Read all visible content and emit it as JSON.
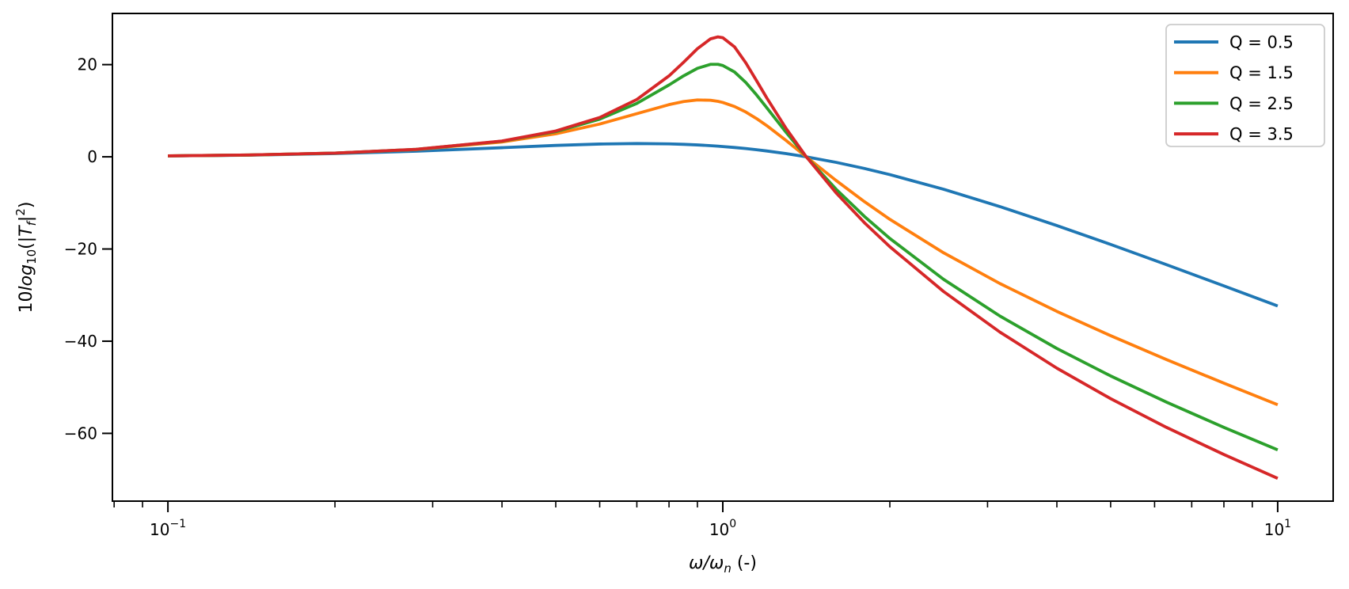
{
  "chart_data": {
    "type": "line",
    "title": "",
    "xlabel": "ω/ω_n (-)",
    "ylabel": "10log_10(|T_f|^2)",
    "xlabel_segments": [
      {
        "text": "ω/ω",
        "italic": true,
        "script": "normal"
      },
      {
        "text": "n",
        "italic": true,
        "script": "sub"
      },
      {
        "text": " (-)",
        "italic": false,
        "script": "normal"
      }
    ],
    "ylabel_segments": [
      {
        "text": "10",
        "italic": false,
        "script": "normal"
      },
      {
        "text": "log",
        "italic": true,
        "script": "normal"
      },
      {
        "text": "10",
        "italic": false,
        "script": "sub"
      },
      {
        "text": "(|",
        "italic": false,
        "script": "normal"
      },
      {
        "text": "T",
        "italic": true,
        "script": "normal"
      },
      {
        "text": "f",
        "italic": true,
        "script": "sub"
      },
      {
        "text": "|",
        "italic": false,
        "script": "normal"
      },
      {
        "text": "2",
        "italic": false,
        "script": "super"
      },
      {
        "text": ")",
        "italic": false,
        "script": "normal"
      }
    ],
    "x_scale": "log",
    "xlim": [
      0.07943,
      12.589
    ],
    "ylim": [
      -74.7,
      31.1
    ],
    "grid": false,
    "x_major_ticks": [
      {
        "value": 0.1,
        "label_base": "10",
        "label_exp": "−1"
      },
      {
        "value": 1,
        "label_base": "10",
        "label_exp": "0"
      },
      {
        "value": 10,
        "label_base": "10",
        "label_exp": "1"
      }
    ],
    "y_ticks": [
      {
        "value": 20,
        "label": "20"
      },
      {
        "value": 0,
        "label": "0"
      },
      {
        "value": -20,
        "label": "−20"
      },
      {
        "value": -40,
        "label": "−40"
      },
      {
        "value": -60,
        "label": "−60"
      }
    ],
    "legend": {
      "position": "upper right",
      "border_color": "#cccccc",
      "background": "#ffffff"
    },
    "x": [
      0.1,
      0.14,
      0.2,
      0.28,
      0.4,
      0.5,
      0.6,
      0.7,
      0.8,
      0.85,
      0.9,
      0.95,
      0.98,
      1.0,
      1.05,
      1.1,
      1.15,
      1.2,
      1.3,
      1.414,
      1.6,
      1.8,
      2.0,
      2.5,
      3.16,
      4.0,
      5.0,
      6.3,
      8.0,
      10.0
    ],
    "series": [
      {
        "name": "Q = 0.5",
        "q": 0.5,
        "color": "#1f77b4",
        "values": [
          0.19,
          0.37,
          0.7,
          1.22,
          1.98,
          2.47,
          2.77,
          2.88,
          2.8,
          2.71,
          2.58,
          2.42,
          2.31,
          2.23,
          2.02,
          1.79,
          1.54,
          1.27,
          0.7,
          0.0,
          -1.2,
          -2.53,
          -3.86,
          -7.04,
          -10.81,
          -14.92,
          -19.01,
          -23.39,
          -28.0,
          -32.36
        ]
      },
      {
        "name": "Q = 1.5",
        "q": 1.5,
        "color": "#ff7f0e",
        "values": [
          0.2,
          0.39,
          0.8,
          1.57,
          3.21,
          5.0,
          7.11,
          9.36,
          11.32,
          11.99,
          12.33,
          12.27,
          12.03,
          11.79,
          10.91,
          9.72,
          8.31,
          6.77,
          3.56,
          0.0,
          -5.13,
          -9.73,
          -13.56,
          -20.83,
          -27.51,
          -33.54,
          -38.81,
          -43.98,
          -49.11,
          -53.79
        ]
      },
      {
        "name": "Q = 2.5",
        "q": 2.5,
        "color": "#2ca02c",
        "values": [
          0.2,
          0.39,
          0.81,
          1.61,
          3.38,
          5.46,
          8.17,
          11.59,
          15.59,
          17.57,
          19.19,
          20.06,
          20.06,
          19.81,
          18.4,
          16.14,
          13.45,
          10.65,
          5.32,
          0.0,
          -7.02,
          -12.94,
          -17.71,
          -26.59,
          -34.56,
          -41.58,
          -47.54,
          -53.21,
          -58.7,
          -63.59
        ]
      },
      {
        "name": "Q = 3.5",
        "q": 3.5,
        "color": "#d62728",
        "values": [
          0.2,
          0.4,
          0.81,
          1.62,
          3.43,
          5.6,
          8.52,
          12.43,
          17.56,
          20.52,
          23.45,
          25.58,
          26.02,
          25.84,
          23.84,
          20.4,
          16.54,
          12.79,
          6.17,
          0.0,
          -7.82,
          -14.3,
          -19.5,
          -29.23,
          -38.05,
          -45.86,
          -52.47,
          -58.69,
          -64.59,
          -69.76
        ]
      }
    ]
  }
}
